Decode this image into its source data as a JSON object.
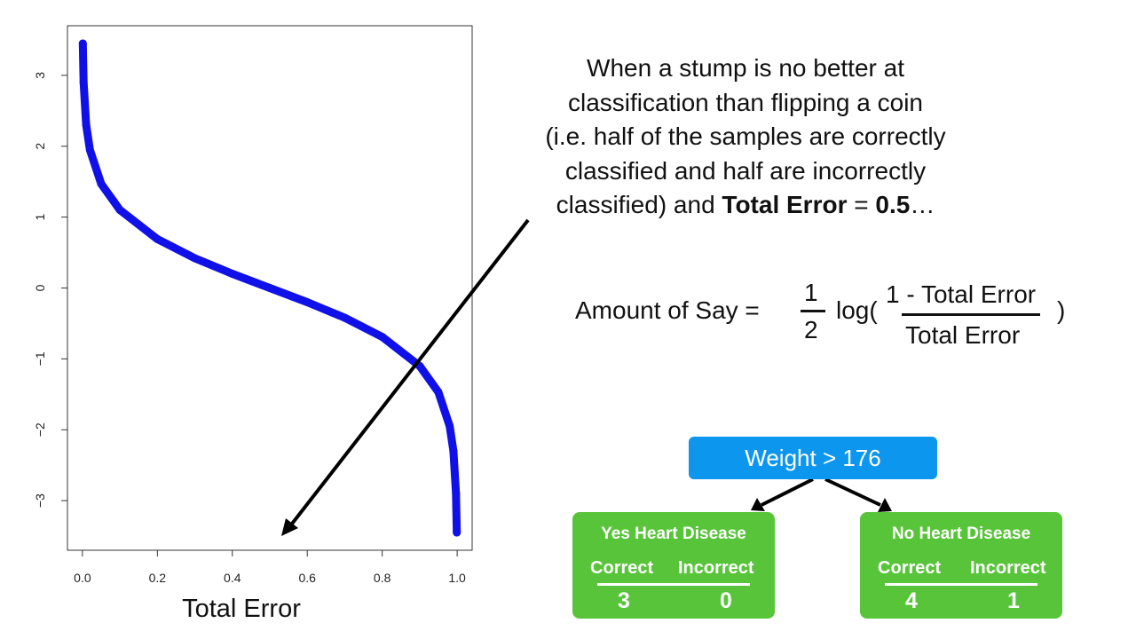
{
  "chart_data": {
    "type": "line",
    "title": "",
    "xlabel": "Total Error",
    "ylabel": "",
    "x_ticks": [
      "0.0",
      "0.2",
      "0.4",
      "0.6",
      "0.8",
      "1.0"
    ],
    "y_ticks": [
      "−3",
      "−2",
      "−1",
      "0",
      "1",
      "2",
      "3"
    ],
    "xlim": [
      -0.04,
      1.04
    ],
    "ylim": [
      -3.7,
      3.7
    ],
    "series": [
      {
        "color": "#1010e8",
        "x": [
          0.001,
          0.003,
          0.01,
          0.02,
          0.05,
          0.1,
          0.2,
          0.3,
          0.4,
          0.5,
          0.6,
          0.7,
          0.8,
          0.9,
          0.95,
          0.98,
          0.99,
          0.997,
          0.999
        ],
        "y": [
          3.45,
          2.9,
          2.3,
          1.95,
          1.47,
          1.1,
          0.69,
          0.42,
          0.2,
          0.0,
          -0.2,
          -0.42,
          -0.69,
          -1.1,
          -1.47,
          -1.95,
          -2.3,
          -2.9,
          -3.45
        ]
      }
    ]
  },
  "caption": {
    "line1": "When a stump is no better at",
    "line2": "classification than flipping a coin",
    "line3": "(i.e. half of the samples are correctly",
    "line4": "classified and half are incorrectly",
    "line5_a": "classified) and ",
    "line5_bold": "Total Error",
    "line5_b": " = ",
    "line5_bold2": "0.5",
    "line5_c": "…"
  },
  "formula": {
    "lhs": "Amount of Say =",
    "half_num": "1",
    "half_den": "2",
    "log": "log(",
    "frac_num": "1 - Total Error",
    "frac_den": "Total Error",
    "close": ")"
  },
  "tree": {
    "root": "Weight > 176",
    "left": {
      "title": "Yes Heart Disease",
      "correct_label": "Correct",
      "incorrect_label": "Incorrect",
      "correct": "3",
      "incorrect": "0"
    },
    "right": {
      "title": "No Heart Disease",
      "correct_label": "Correct",
      "incorrect_label": "Incorrect",
      "correct": "4",
      "incorrect": "1"
    }
  },
  "colors": {
    "curve": "#1010e8",
    "root_box": "#0c96ee",
    "leaf_box": "#58c43a",
    "arrow": "#000000"
  }
}
